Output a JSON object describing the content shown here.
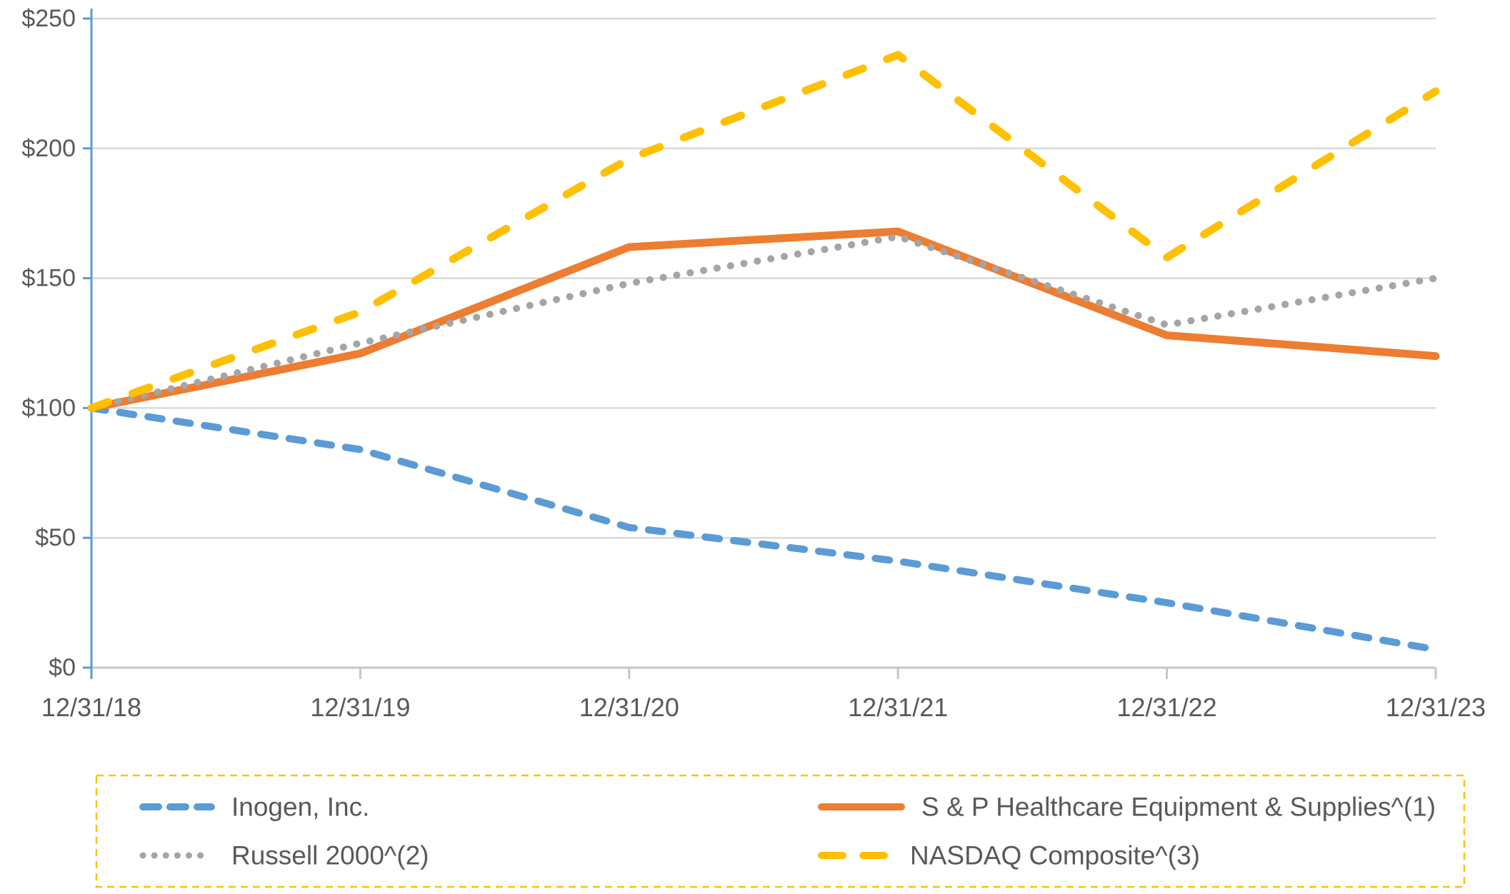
{
  "chart_data": {
    "type": "line",
    "title": "",
    "x_categories": [
      "12/31/18",
      "12/31/19",
      "12/31/20",
      "12/31/21",
      "12/31/22",
      "12/31/23"
    ],
    "y_tick_values": [
      0,
      50,
      100,
      150,
      200,
      250
    ],
    "y_tick_labels": [
      "$0",
      "$50",
      "$100",
      "$150",
      "$200",
      "$250"
    ],
    "ylim": [
      0,
      250
    ],
    "grid": true,
    "series": [
      {
        "name": "Inogen, Inc.",
        "color": "#5B9BD5",
        "style": "dash",
        "values": [
          100,
          84,
          54,
          41,
          25,
          7
        ]
      },
      {
        "name": "S & P Healthcare Equipment & Supplies^(1)",
        "color": "#ED7D31",
        "style": "solid",
        "values": [
          100,
          121,
          162,
          168,
          128,
          120
        ]
      },
      {
        "name": "Russell 2000^(2)",
        "color": "#A5A5A5",
        "style": "dot",
        "values": [
          100,
          125,
          148,
          166,
          132,
          150
        ]
      },
      {
        "name": "NASDAQ Composite^(3)",
        "color": "#FFC000",
        "style": "long-dash",
        "values": [
          100,
          137,
          196,
          236,
          158,
          222
        ]
      }
    ],
    "legend": {
      "position": "bottom",
      "columns": 2,
      "border_color": "#FFC000",
      "order": [
        "Inogen, Inc.",
        "S & P Healthcare Equipment & Supplies^(1)",
        "Russell 2000^(2)",
        "NASDAQ Composite^(3)"
      ]
    },
    "axis_colors": {
      "y_axis": "#5B9BD5",
      "gridline": "#D9D9D9",
      "x_axis": "#C6C6C6",
      "tick_label": "#595959"
    }
  }
}
